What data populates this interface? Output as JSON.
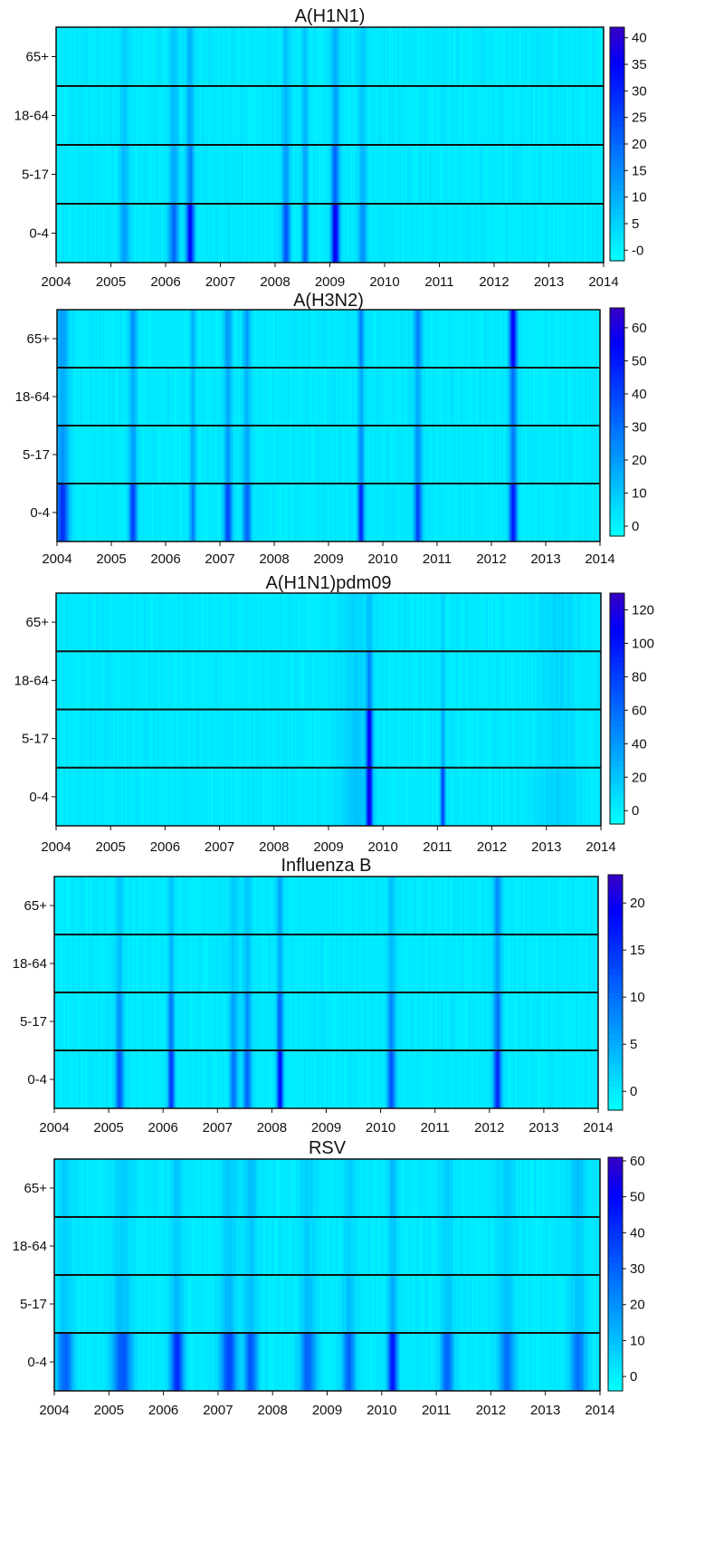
{
  "chart_data": [
    {
      "type": "heatmap",
      "title": "A(H1N1)",
      "xlabel": "",
      "ylabel": "",
      "x_ticks": [
        "2004",
        "2005",
        "2006",
        "2007",
        "2008",
        "2009",
        "2010",
        "2011",
        "2012",
        "2013",
        "2014"
      ],
      "xlim": [
        2004,
        2014
      ],
      "rows": [
        "65+",
        "18-64",
        "5-17",
        "0-4"
      ],
      "colorbar": {
        "ticks": [
          "-0",
          "5",
          "10",
          "15",
          "20",
          "25",
          "30",
          "35",
          "40"
        ],
        "range": [
          -2,
          42
        ]
      },
      "peaks": [
        {
          "x": 2006.45,
          "intensity": [
            0.18,
            0.22,
            0.35,
            0.75
          ],
          "width": 0.05
        },
        {
          "x": 2006.15,
          "intensity": [
            0.12,
            0.15,
            0.22,
            0.42
          ],
          "width": 0.06
        },
        {
          "x": 2008.2,
          "intensity": [
            0.14,
            0.17,
            0.25,
            0.5
          ],
          "width": 0.05
        },
        {
          "x": 2008.55,
          "intensity": [
            0.13,
            0.16,
            0.22,
            0.45
          ],
          "width": 0.04
        },
        {
          "x": 2009.1,
          "intensity": [
            0.2,
            0.25,
            0.45,
            0.82
          ],
          "width": 0.05
        },
        {
          "x": 2009.6,
          "intensity": [
            0.1,
            0.12,
            0.18,
            0.3
          ],
          "width": 0.05
        },
        {
          "x": 2005.25,
          "intensity": [
            0.08,
            0.1,
            0.15,
            0.25
          ],
          "width": 0.06
        }
      ]
    },
    {
      "type": "heatmap",
      "title": "A(H3N2)",
      "xlabel": "",
      "ylabel": "",
      "x_ticks": [
        "2004",
        "2005",
        "2006",
        "2007",
        "2008",
        "2009",
        "2010",
        "2011",
        "2012",
        "2013",
        "2014"
      ],
      "xlim": [
        2004,
        2014
      ],
      "rows": [
        "65+",
        "18-64",
        "5-17",
        "0-4"
      ],
      "colorbar": {
        "ticks": [
          "0",
          "10",
          "20",
          "30",
          "40",
          "50",
          "60"
        ],
        "range": [
          -3,
          66
        ]
      },
      "peaks": [
        {
          "x": 2004.1,
          "intensity": [
            0.25,
            0.2,
            0.28,
            0.6
          ],
          "width": 0.08
        },
        {
          "x": 2005.4,
          "intensity": [
            0.3,
            0.2,
            0.25,
            0.55
          ],
          "width": 0.05
        },
        {
          "x": 2006.5,
          "intensity": [
            0.18,
            0.14,
            0.18,
            0.35
          ],
          "width": 0.04
        },
        {
          "x": 2007.15,
          "intensity": [
            0.28,
            0.2,
            0.25,
            0.55
          ],
          "width": 0.05
        },
        {
          "x": 2007.5,
          "intensity": [
            0.25,
            0.18,
            0.22,
            0.45
          ],
          "width": 0.05
        },
        {
          "x": 2009.6,
          "intensity": [
            0.35,
            0.22,
            0.3,
            0.65
          ],
          "width": 0.04
        },
        {
          "x": 2010.65,
          "intensity": [
            0.35,
            0.22,
            0.28,
            0.55
          ],
          "width": 0.05
        },
        {
          "x": 2012.4,
          "intensity": [
            0.75,
            0.4,
            0.35,
            0.7
          ],
          "width": 0.05
        }
      ]
    },
    {
      "type": "heatmap",
      "title": "A(H1N1)pdm09",
      "xlabel": "",
      "ylabel": "",
      "x_ticks": [
        "2004",
        "2005",
        "2006",
        "2007",
        "2008",
        "2009",
        "2010",
        "2011",
        "2012",
        "2013",
        "2014"
      ],
      "xlim": [
        2004,
        2014
      ],
      "rows": [
        "65+",
        "18-64",
        "5-17",
        "0-4"
      ],
      "colorbar": {
        "ticks": [
          "0",
          "20",
          "40",
          "60",
          "80",
          "100",
          "120"
        ],
        "range": [
          -8,
          130
        ]
      },
      "peaks": [
        {
          "x": 2009.75,
          "intensity": [
            0.12,
            0.32,
            0.75,
            0.8
          ],
          "width": 0.04
        },
        {
          "x": 2011.1,
          "intensity": [
            0.08,
            0.1,
            0.22,
            0.55
          ],
          "width": 0.03
        },
        {
          "x": 2009.5,
          "intensity": [
            0.06,
            0.08,
            0.1,
            0.12
          ],
          "width": 0.2
        },
        {
          "x": 2013.2,
          "intensity": [
            0.06,
            0.05,
            0.05,
            0.08
          ],
          "width": 0.25
        }
      ]
    },
    {
      "type": "heatmap",
      "title": "Influenza B",
      "xlabel": "",
      "ylabel": "",
      "x_ticks": [
        "2004",
        "2005",
        "2006",
        "2007",
        "2008",
        "2009",
        "2010",
        "2011",
        "2012",
        "2013",
        "2014"
      ],
      "xlim": [
        2004,
        2014
      ],
      "rows": [
        "65+",
        "18-64",
        "5-17",
        "0-4"
      ],
      "colorbar": {
        "ticks": [
          "0",
          "5",
          "10",
          "15",
          "20"
        ],
        "range": [
          -2,
          23
        ]
      },
      "peaks": [
        {
          "x": 2005.2,
          "intensity": [
            0.12,
            0.14,
            0.3,
            0.5
          ],
          "width": 0.05
        },
        {
          "x": 2006.15,
          "intensity": [
            0.14,
            0.18,
            0.4,
            0.62
          ],
          "width": 0.04
        },
        {
          "x": 2007.3,
          "intensity": [
            0.1,
            0.12,
            0.25,
            0.4
          ],
          "width": 0.05
        },
        {
          "x": 2007.55,
          "intensity": [
            0.14,
            0.16,
            0.3,
            0.45
          ],
          "width": 0.05
        },
        {
          "x": 2008.15,
          "intensity": [
            0.22,
            0.2,
            0.45,
            0.75
          ],
          "width": 0.04
        },
        {
          "x": 2010.2,
          "intensity": [
            0.14,
            0.16,
            0.32,
            0.5
          ],
          "width": 0.05
        },
        {
          "x": 2012.15,
          "intensity": [
            0.32,
            0.24,
            0.4,
            0.65
          ],
          "width": 0.05
        }
      ]
    },
    {
      "type": "heatmap",
      "title": "RSV",
      "xlabel": "",
      "ylabel": "",
      "x_ticks": [
        "2004",
        "2005",
        "2006",
        "2007",
        "2008",
        "2009",
        "2010",
        "2011",
        "2012",
        "2013",
        "2014"
      ],
      "xlim": [
        2004,
        2014
      ],
      "rows": [
        "65+",
        "18-64",
        "5-17",
        "0-4"
      ],
      "colorbar": {
        "ticks": [
          "0",
          "10",
          "20",
          "30",
          "40",
          "50",
          "60"
        ],
        "range": [
          -4,
          61
        ]
      },
      "peaks": [
        {
          "x": 2004.2,
          "intensity": [
            0.1,
            0.08,
            0.12,
            0.45
          ],
          "width": 0.1
        },
        {
          "x": 2005.25,
          "intensity": [
            0.1,
            0.08,
            0.14,
            0.5
          ],
          "width": 0.12
        },
        {
          "x": 2006.25,
          "intensity": [
            0.12,
            0.1,
            0.16,
            0.65
          ],
          "width": 0.08
        },
        {
          "x": 2007.2,
          "intensity": [
            0.12,
            0.1,
            0.16,
            0.55
          ],
          "width": 0.1
        },
        {
          "x": 2007.6,
          "intensity": [
            0.14,
            0.1,
            0.14,
            0.5
          ],
          "width": 0.08
        },
        {
          "x": 2008.65,
          "intensity": [
            0.1,
            0.08,
            0.14,
            0.45
          ],
          "width": 0.1
        },
        {
          "x": 2009.4,
          "intensity": [
            0.1,
            0.08,
            0.14,
            0.45
          ],
          "width": 0.08
        },
        {
          "x": 2010.2,
          "intensity": [
            0.16,
            0.12,
            0.2,
            0.7
          ],
          "width": 0.06
        },
        {
          "x": 2011.2,
          "intensity": [
            0.1,
            0.08,
            0.12,
            0.45
          ],
          "width": 0.08
        },
        {
          "x": 2012.3,
          "intensity": [
            0.1,
            0.08,
            0.12,
            0.4
          ],
          "width": 0.1
        },
        {
          "x": 2013.6,
          "intensity": [
            0.14,
            0.08,
            0.12,
            0.4
          ],
          "width": 0.1
        }
      ]
    }
  ]
}
